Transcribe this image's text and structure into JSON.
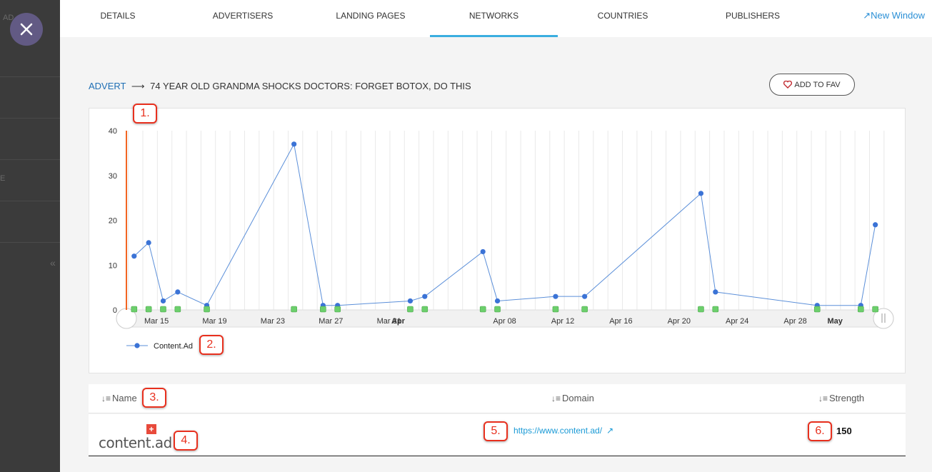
{
  "sidebar": {
    "fragment_top": "AD...ZZ",
    "fragment_mid": "E",
    "collapse_glyph": "«"
  },
  "tabs": [
    {
      "label": "DETAILS"
    },
    {
      "label": "ADVERTISERS"
    },
    {
      "label": "LANDING PAGES"
    },
    {
      "label": "NETWORKS",
      "active": true
    },
    {
      "label": "COUNTRIES"
    },
    {
      "label": "PUBLISHERS"
    }
  ],
  "new_window": {
    "label": "New Window",
    "icon": "arrow-up-right-icon"
  },
  "breadcrumb": {
    "root": "ADVERT",
    "arrow": "⟶",
    "title": "74 YEAR OLD GRANDMA SHOCKS DOCTORS: FORGET BOTOX, DO THIS"
  },
  "fav_button": {
    "label": "ADD TO FAV",
    "icon": "heart-icon"
  },
  "chart_data": {
    "type": "line",
    "ylim": [
      0,
      40
    ],
    "yticks": [
      0,
      10,
      20,
      30,
      40
    ],
    "xtick_labels": [
      {
        "label": "Mar 15",
        "day": 0,
        "bold": false
      },
      {
        "label": "Mar 19",
        "day": 4,
        "bold": false
      },
      {
        "label": "Mar 23",
        "day": 8,
        "bold": false
      },
      {
        "label": "Mar 27",
        "day": 12,
        "bold": false
      },
      {
        "label": "Mar 31",
        "day": 16,
        "bold": false
      },
      {
        "label": "Apr",
        "day": 17,
        "bold": true
      },
      {
        "label": "Apr 08",
        "day": 24,
        "bold": false
      },
      {
        "label": "Apr 12",
        "day": 28,
        "bold": false
      },
      {
        "label": "Apr 16",
        "day": 32,
        "bold": false
      },
      {
        "label": "Apr 20",
        "day": 36,
        "bold": false
      },
      {
        "label": "Apr 24",
        "day": 40,
        "bold": false
      },
      {
        "label": "Apr 28",
        "day": 44,
        "bold": false
      },
      {
        "label": "May",
        "day": 47,
        "bold": true
      }
    ],
    "series": [
      {
        "name": "Content.Ad",
        "color": "#3b73d6",
        "points": [
          {
            "day": -0.6,
            "y": 12
          },
          {
            "day": 0.4,
            "y": 15
          },
          {
            "day": 1.4,
            "y": 2
          },
          {
            "day": 2.4,
            "y": 4
          },
          {
            "day": 4.4,
            "y": 1
          },
          {
            "day": 10.4,
            "y": 37
          },
          {
            "day": 12.4,
            "y": 1
          },
          {
            "day": 13.4,
            "y": 1
          },
          {
            "day": 18.4,
            "y": 2
          },
          {
            "day": 19.4,
            "y": 3
          },
          {
            "day": 23.4,
            "y": 13
          },
          {
            "day": 24.4,
            "y": 2
          },
          {
            "day": 28.4,
            "y": 3
          },
          {
            "day": 30.4,
            "y": 3
          },
          {
            "day": 38.4,
            "y": 26
          },
          {
            "day": 39.4,
            "y": 4
          },
          {
            "day": 46.4,
            "y": 1
          },
          {
            "day": 49.4,
            "y": 1
          },
          {
            "day": 50.4,
            "y": 19
          }
        ]
      }
    ],
    "flag_days": [
      -0.6,
      0.4,
      1.4,
      2.4,
      4.4,
      10.4,
      12.4,
      13.4,
      18.4,
      19.4,
      23.4,
      24.4,
      28.4,
      30.4,
      38.4,
      39.4,
      46.4,
      49.4,
      50.4
    ],
    "flag_color": "#6ccf6c",
    "grid": true,
    "legend_placement": "bottom-left"
  },
  "table": {
    "headers": {
      "name": "Name",
      "domain": "Domain",
      "strength": "Strength"
    },
    "rows": [
      {
        "name": "content.ad",
        "logo_text": "content.ad",
        "domain": "https://www.content.ad/",
        "strength": "150"
      }
    ]
  },
  "callouts": [
    "1.",
    "2.",
    "3.",
    "4.",
    "5.",
    "6."
  ]
}
